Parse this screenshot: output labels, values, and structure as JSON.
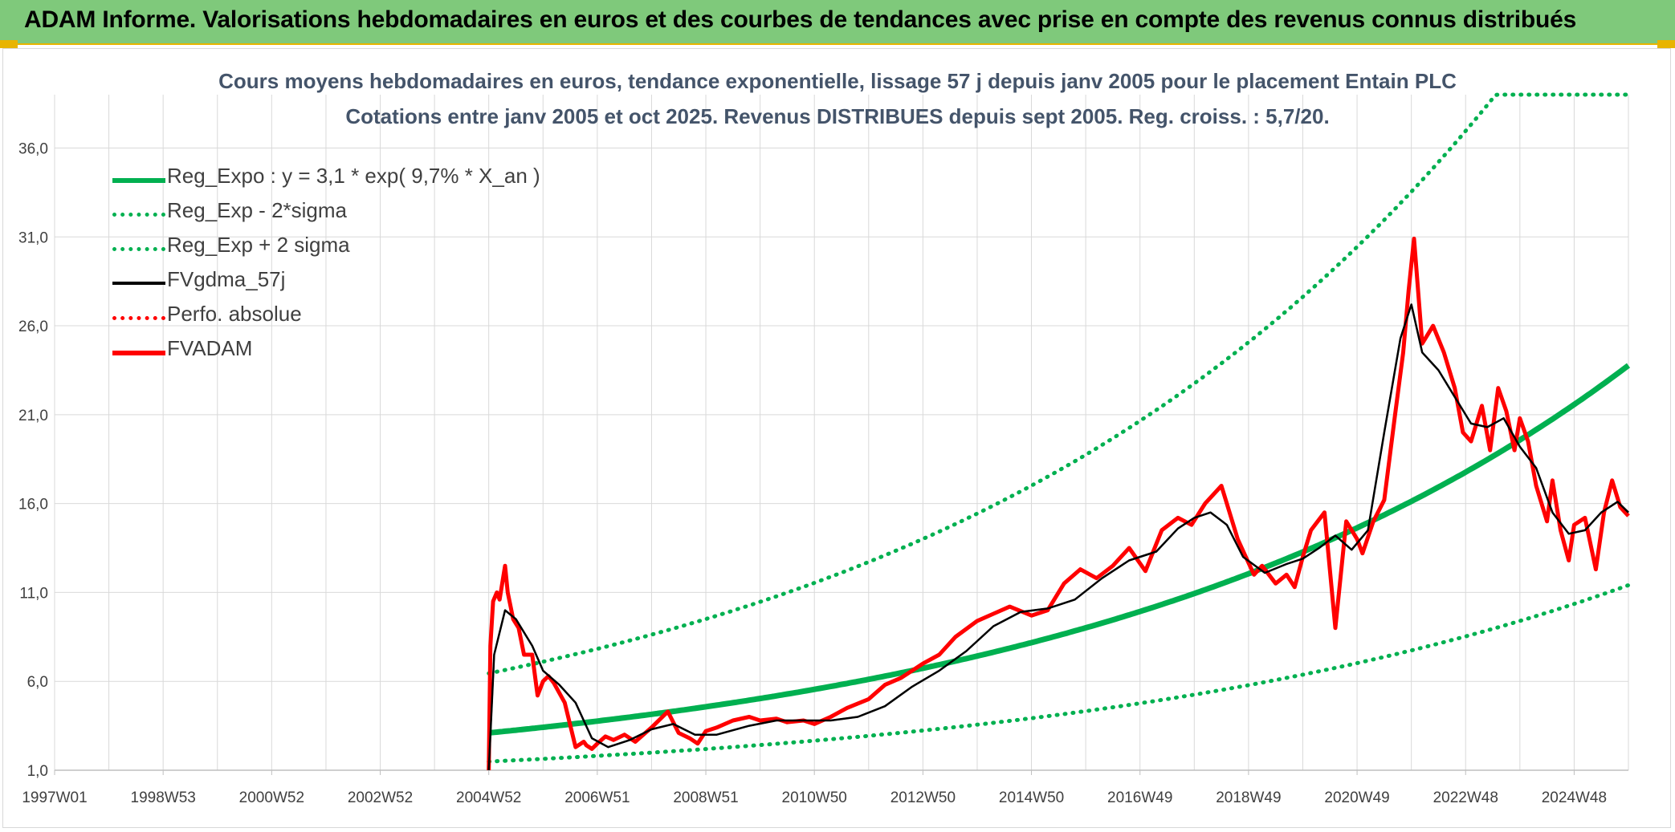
{
  "header": {
    "title": "ADAM Informe. Valorisations hebdomadaires en euros et des courbes de tendances avec prise en compte des revenus connus distribués"
  },
  "chart_data": {
    "type": "line",
    "title": "Cours moyens hebdomadaires en euros, tendance exponentielle, lissage 57 j depuis janv 2005 pour le placement Entain PLC",
    "subtitle": "Cotations entre janv 2005 et oct 2025. Revenus DISTRIBUES depuis sept 2005. Reg. croiss. : 5,7/20.",
    "xlabel": "",
    "ylabel": "",
    "x_tick_labels": [
      "1997W01",
      "1998W53",
      "2000W52",
      "2002W52",
      "2004W52",
      "2006W51",
      "2008W51",
      "2010W50",
      "2012W50",
      "2014W50",
      "2016W49",
      "2018W49",
      "2020W49",
      "2022W48",
      "2024W48"
    ],
    "x_tick_years": [
      1997.0,
      1999.0,
      2001.0,
      2003.0,
      2005.0,
      2007.0,
      2009.0,
      2011.0,
      2013.0,
      2015.0,
      2017.0,
      2019.0,
      2021.0,
      2023.0,
      2025.0
    ],
    "xlim": [
      1997.0,
      2026.0
    ],
    "y_tick_labels": [
      "1,0",
      "6,0",
      "11,0",
      "16,0",
      "21,0",
      "26,0",
      "31,0",
      "36,0"
    ],
    "ylim": [
      1.0,
      39.0
    ],
    "grid": true,
    "legend_position": "top-left",
    "legend": [
      {
        "label": "Reg_Expo : y = 3,1 * exp( 9,7% *  X_an )",
        "color": "#00b050",
        "style": "solid-thick"
      },
      {
        "label": "Reg_Exp - 2*sigma",
        "color": "#00b050",
        "style": "dotted"
      },
      {
        "label": "Reg_Exp + 2 sigma",
        "color": "#00b050",
        "style": "dotted"
      },
      {
        "label": "FVgdma_57j",
        "color": "#000000",
        "style": "solid"
      },
      {
        "label": "Perfo. absolue",
        "color": "#ff0000",
        "style": "dotted"
      },
      {
        "label": "FVADAM",
        "color": "#ff0000",
        "style": "solid-thick"
      }
    ],
    "regression": {
      "a": 3.1,
      "rate": 0.097,
      "x0_year": 2005.0,
      "x_end_year": 2026.0,
      "upper_factor": 2.08,
      "lower_factor": 0.48,
      "upper_cap": 39.0
    },
    "series": [
      {
        "name": "FVADAM",
        "color": "#ff0000",
        "x": [
          2005.0,
          2005.03,
          2005.08,
          2005.15,
          2005.2,
          2005.3,
          2005.35,
          2005.45,
          2005.55,
          2005.65,
          2005.8,
          2005.9,
          2006.0,
          2006.1,
          2006.2,
          2006.4,
          2006.6,
          2006.75,
          2006.8,
          2006.9,
          2007.0,
          2007.15,
          2007.3,
          2007.5,
          2007.7,
          2008.0,
          2008.3,
          2008.5,
          2008.7,
          2008.85,
          2009.0,
          2009.2,
          2009.5,
          2009.8,
          2010.0,
          2010.3,
          2010.5,
          2010.8,
          2011.0,
          2011.3,
          2011.6,
          2012.0,
          2012.3,
          2012.6,
          2013.0,
          2013.3,
          2013.6,
          2014.0,
          2014.3,
          2014.6,
          2015.0,
          2015.3,
          2015.6,
          2015.9,
          2016.2,
          2016.5,
          2016.8,
          2017.1,
          2017.4,
          2017.7,
          2017.95,
          2018.2,
          2018.5,
          2018.8,
          2018.95,
          2019.1,
          2019.25,
          2019.5,
          2019.7,
          2019.85,
          2020.0,
          2020.15,
          2020.4,
          2020.6,
          2020.8,
          2021.0,
          2021.1,
          2021.3,
          2021.5,
          2021.7,
          2021.85,
          2021.95,
          2022.05,
          2022.2,
          2022.4,
          2022.6,
          2022.8,
          2022.95,
          2023.1,
          2023.3,
          2023.45,
          2023.6,
          2023.75,
          2023.9,
          2024.0,
          2024.15,
          2024.3,
          2024.5,
          2024.6,
          2024.75,
          2024.9,
          2025.0,
          2025.2,
          2025.4,
          2025.55,
          2025.7,
          2025.85,
          2026.0
        ],
        "values": [
          1.0,
          8.0,
          10.5,
          11.0,
          10.6,
          12.5,
          11.0,
          9.5,
          9.0,
          7.5,
          7.5,
          5.2,
          6.0,
          6.3,
          5.9,
          4.8,
          2.3,
          2.6,
          2.4,
          2.2,
          2.5,
          2.9,
          2.7,
          3.0,
          2.6,
          3.4,
          4.3,
          3.1,
          2.8,
          2.5,
          3.2,
          3.4,
          3.8,
          4.0,
          3.8,
          3.9,
          3.7,
          3.8,
          3.6,
          4.0,
          4.5,
          5.0,
          5.8,
          6.2,
          7.0,
          7.5,
          8.5,
          9.4,
          9.8,
          10.2,
          9.7,
          10.0,
          11.5,
          12.3,
          11.8,
          12.5,
          13.5,
          12.2,
          14.5,
          15.2,
          14.8,
          16.0,
          17.0,
          14.0,
          13.0,
          12.0,
          12.5,
          11.5,
          12.0,
          11.3,
          13.0,
          14.5,
          15.5,
          9.0,
          15.0,
          14.0,
          13.2,
          15.0,
          16.2,
          21.0,
          24.5,
          28.0,
          30.9,
          25.0,
          26.0,
          24.5,
          22.5,
          20.0,
          19.5,
          21.5,
          19.0,
          22.5,
          21.2,
          19.0,
          20.8,
          19.5,
          17.0,
          15.0,
          17.3,
          14.5,
          12.8,
          14.8,
          15.2,
          12.3,
          15.5,
          17.3,
          15.8,
          15.3
        ]
      },
      {
        "name": "FVgdma_57j",
        "color": "#000000",
        "x": [
          2005.0,
          2005.1,
          2005.3,
          2005.5,
          2005.8,
          2006.0,
          2006.3,
          2006.6,
          2006.9,
          2007.2,
          2007.6,
          2008.0,
          2008.4,
          2008.8,
          2009.2,
          2009.8,
          2010.3,
          2010.8,
          2011.3,
          2011.8,
          2012.3,
          2012.8,
          2013.3,
          2013.8,
          2014.3,
          2014.8,
          2015.3,
          2015.8,
          2016.3,
          2016.8,
          2017.3,
          2017.7,
          2018.0,
          2018.3,
          2018.6,
          2018.9,
          2019.3,
          2019.7,
          2020.0,
          2020.3,
          2020.6,
          2020.9,
          2021.2,
          2021.5,
          2021.8,
          2022.0,
          2022.2,
          2022.5,
          2022.8,
          2023.1,
          2023.4,
          2023.7,
          2024.0,
          2024.3,
          2024.6,
          2024.9,
          2025.2,
          2025.5,
          2025.8,
          2026.0
        ],
        "values": [
          1.0,
          7.5,
          10.0,
          9.5,
          8.0,
          6.6,
          5.8,
          4.8,
          2.8,
          2.3,
          2.7,
          3.3,
          3.6,
          3.0,
          3.0,
          3.5,
          3.8,
          3.8,
          3.8,
          4.0,
          4.6,
          5.7,
          6.6,
          7.7,
          9.1,
          9.9,
          10.1,
          10.6,
          11.8,
          12.8,
          13.3,
          14.6,
          15.2,
          15.5,
          14.8,
          13.0,
          12.1,
          12.6,
          12.9,
          13.5,
          14.2,
          13.4,
          14.5,
          20.0,
          25.3,
          27.2,
          24.5,
          23.5,
          22.0,
          20.5,
          20.3,
          20.8,
          19.2,
          18.0,
          15.5,
          14.3,
          14.5,
          15.5,
          16.1,
          15.5
        ]
      }
    ]
  }
}
